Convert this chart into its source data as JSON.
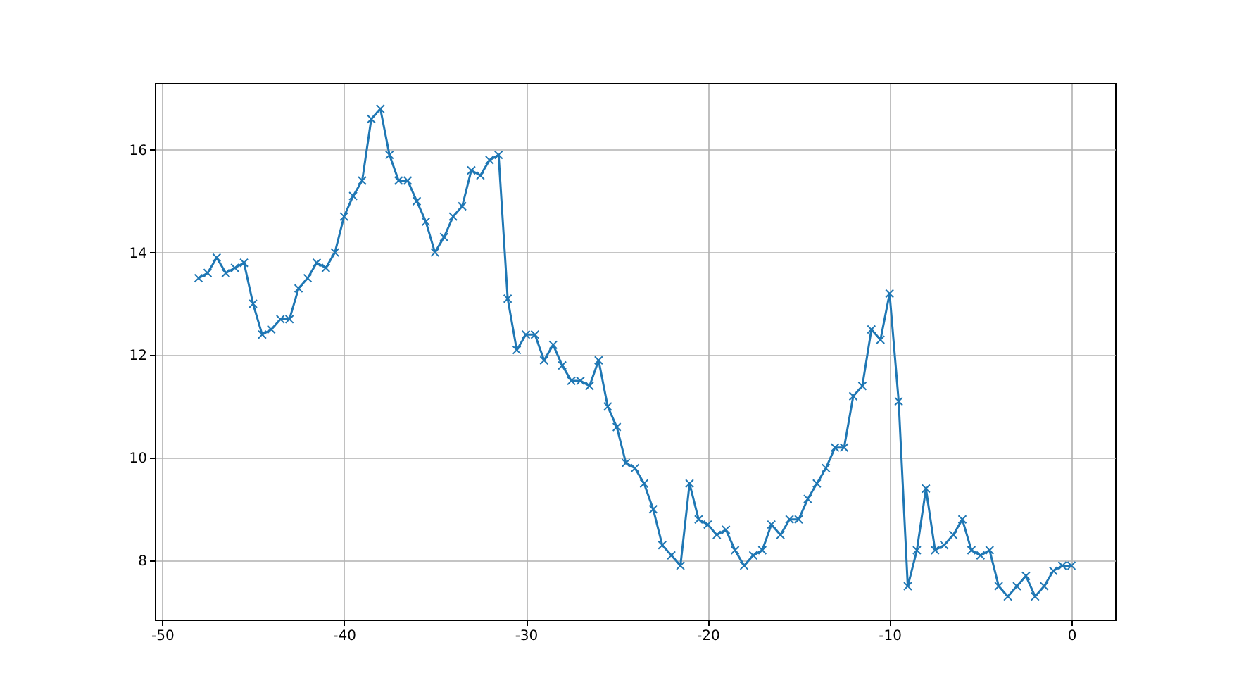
{
  "chart_data": {
    "type": "line",
    "x": [
      -48,
      -47.5,
      -47,
      -46.5,
      -46,
      -45.5,
      -45,
      -44.5,
      -44,
      -43.5,
      -43,
      -42.5,
      -42,
      -41.5,
      -41,
      -40.5,
      -40,
      -39.5,
      -39,
      -38.5,
      -38,
      -37.5,
      -37,
      -36.5,
      -36,
      -35.5,
      -35,
      -34.5,
      -34,
      -33.5,
      -33,
      -32.5,
      -32,
      -31.5,
      -31,
      -30.5,
      -30,
      -29.5,
      -29,
      -28.5,
      -28,
      -27.5,
      -27,
      -26.5,
      -26,
      -25.5,
      -25,
      -24.5,
      -24,
      -23.5,
      -23,
      -22.5,
      -22,
      -21.5,
      -21,
      -20.5,
      -20,
      -19.5,
      -19,
      -18.5,
      -18,
      -17.5,
      -17,
      -16.5,
      -16,
      -15.5,
      -15,
      -14.5,
      -14,
      -13.5,
      -13,
      -12.5,
      -12,
      -11.5,
      -11,
      -10.5,
      -10,
      -9.5,
      -9,
      -8.5,
      -8,
      -7.5,
      -7,
      -6.5,
      -6,
      -5.5,
      -5,
      -4.5,
      -4,
      -3.5,
      -3,
      -2.5,
      -2,
      -1.5,
      -1,
      -0.5,
      0
    ],
    "series": [
      {
        "color": "#1f77b4",
        "values": [
          13.5,
          13.6,
          13.9,
          13.6,
          13.7,
          13.8,
          13.0,
          12.4,
          12.5,
          12.7,
          12.7,
          13.3,
          13.5,
          13.8,
          13.7,
          14.0,
          14.7,
          15.1,
          15.4,
          16.6,
          16.8,
          15.9,
          15.4,
          15.4,
          15.0,
          14.6,
          14.0,
          14.3,
          14.7,
          14.9,
          15.6,
          15.5,
          15.8,
          15.9,
          13.1,
          12.1,
          12.4,
          12.4,
          11.9,
          12.2,
          11.8,
          11.5,
          11.5,
          11.4,
          11.9,
          11.0,
          10.6,
          9.9,
          9.8,
          9.5,
          9.0,
          8.3,
          8.1,
          7.9,
          9.5,
          8.8,
          8.7,
          8.5,
          8.6,
          8.2,
          7.9,
          8.1,
          8.2,
          8.7,
          8.5,
          8.8,
          8.8,
          9.2,
          9.5,
          9.8,
          10.2,
          10.2,
          11.2,
          11.4,
          12.5,
          12.3,
          13.2,
          11.1,
          7.5,
          8.2,
          9.4,
          8.2,
          8.3,
          8.5,
          8.8,
          8.2,
          8.1,
          8.2,
          7.5,
          7.3,
          7.5,
          7.7,
          7.3,
          7.5,
          7.8,
          7.9,
          7.9
        ]
      }
    ],
    "xlim": [
      -50.4,
      2.4
    ],
    "ylim": [
      6.85,
      17.3
    ],
    "xticks": [
      -50,
      -40,
      -30,
      -20,
      -10,
      0
    ],
    "yticks": [
      8,
      10,
      12,
      14,
      16
    ],
    "grid": true,
    "marker": "cross",
    "line_style": "solid"
  }
}
